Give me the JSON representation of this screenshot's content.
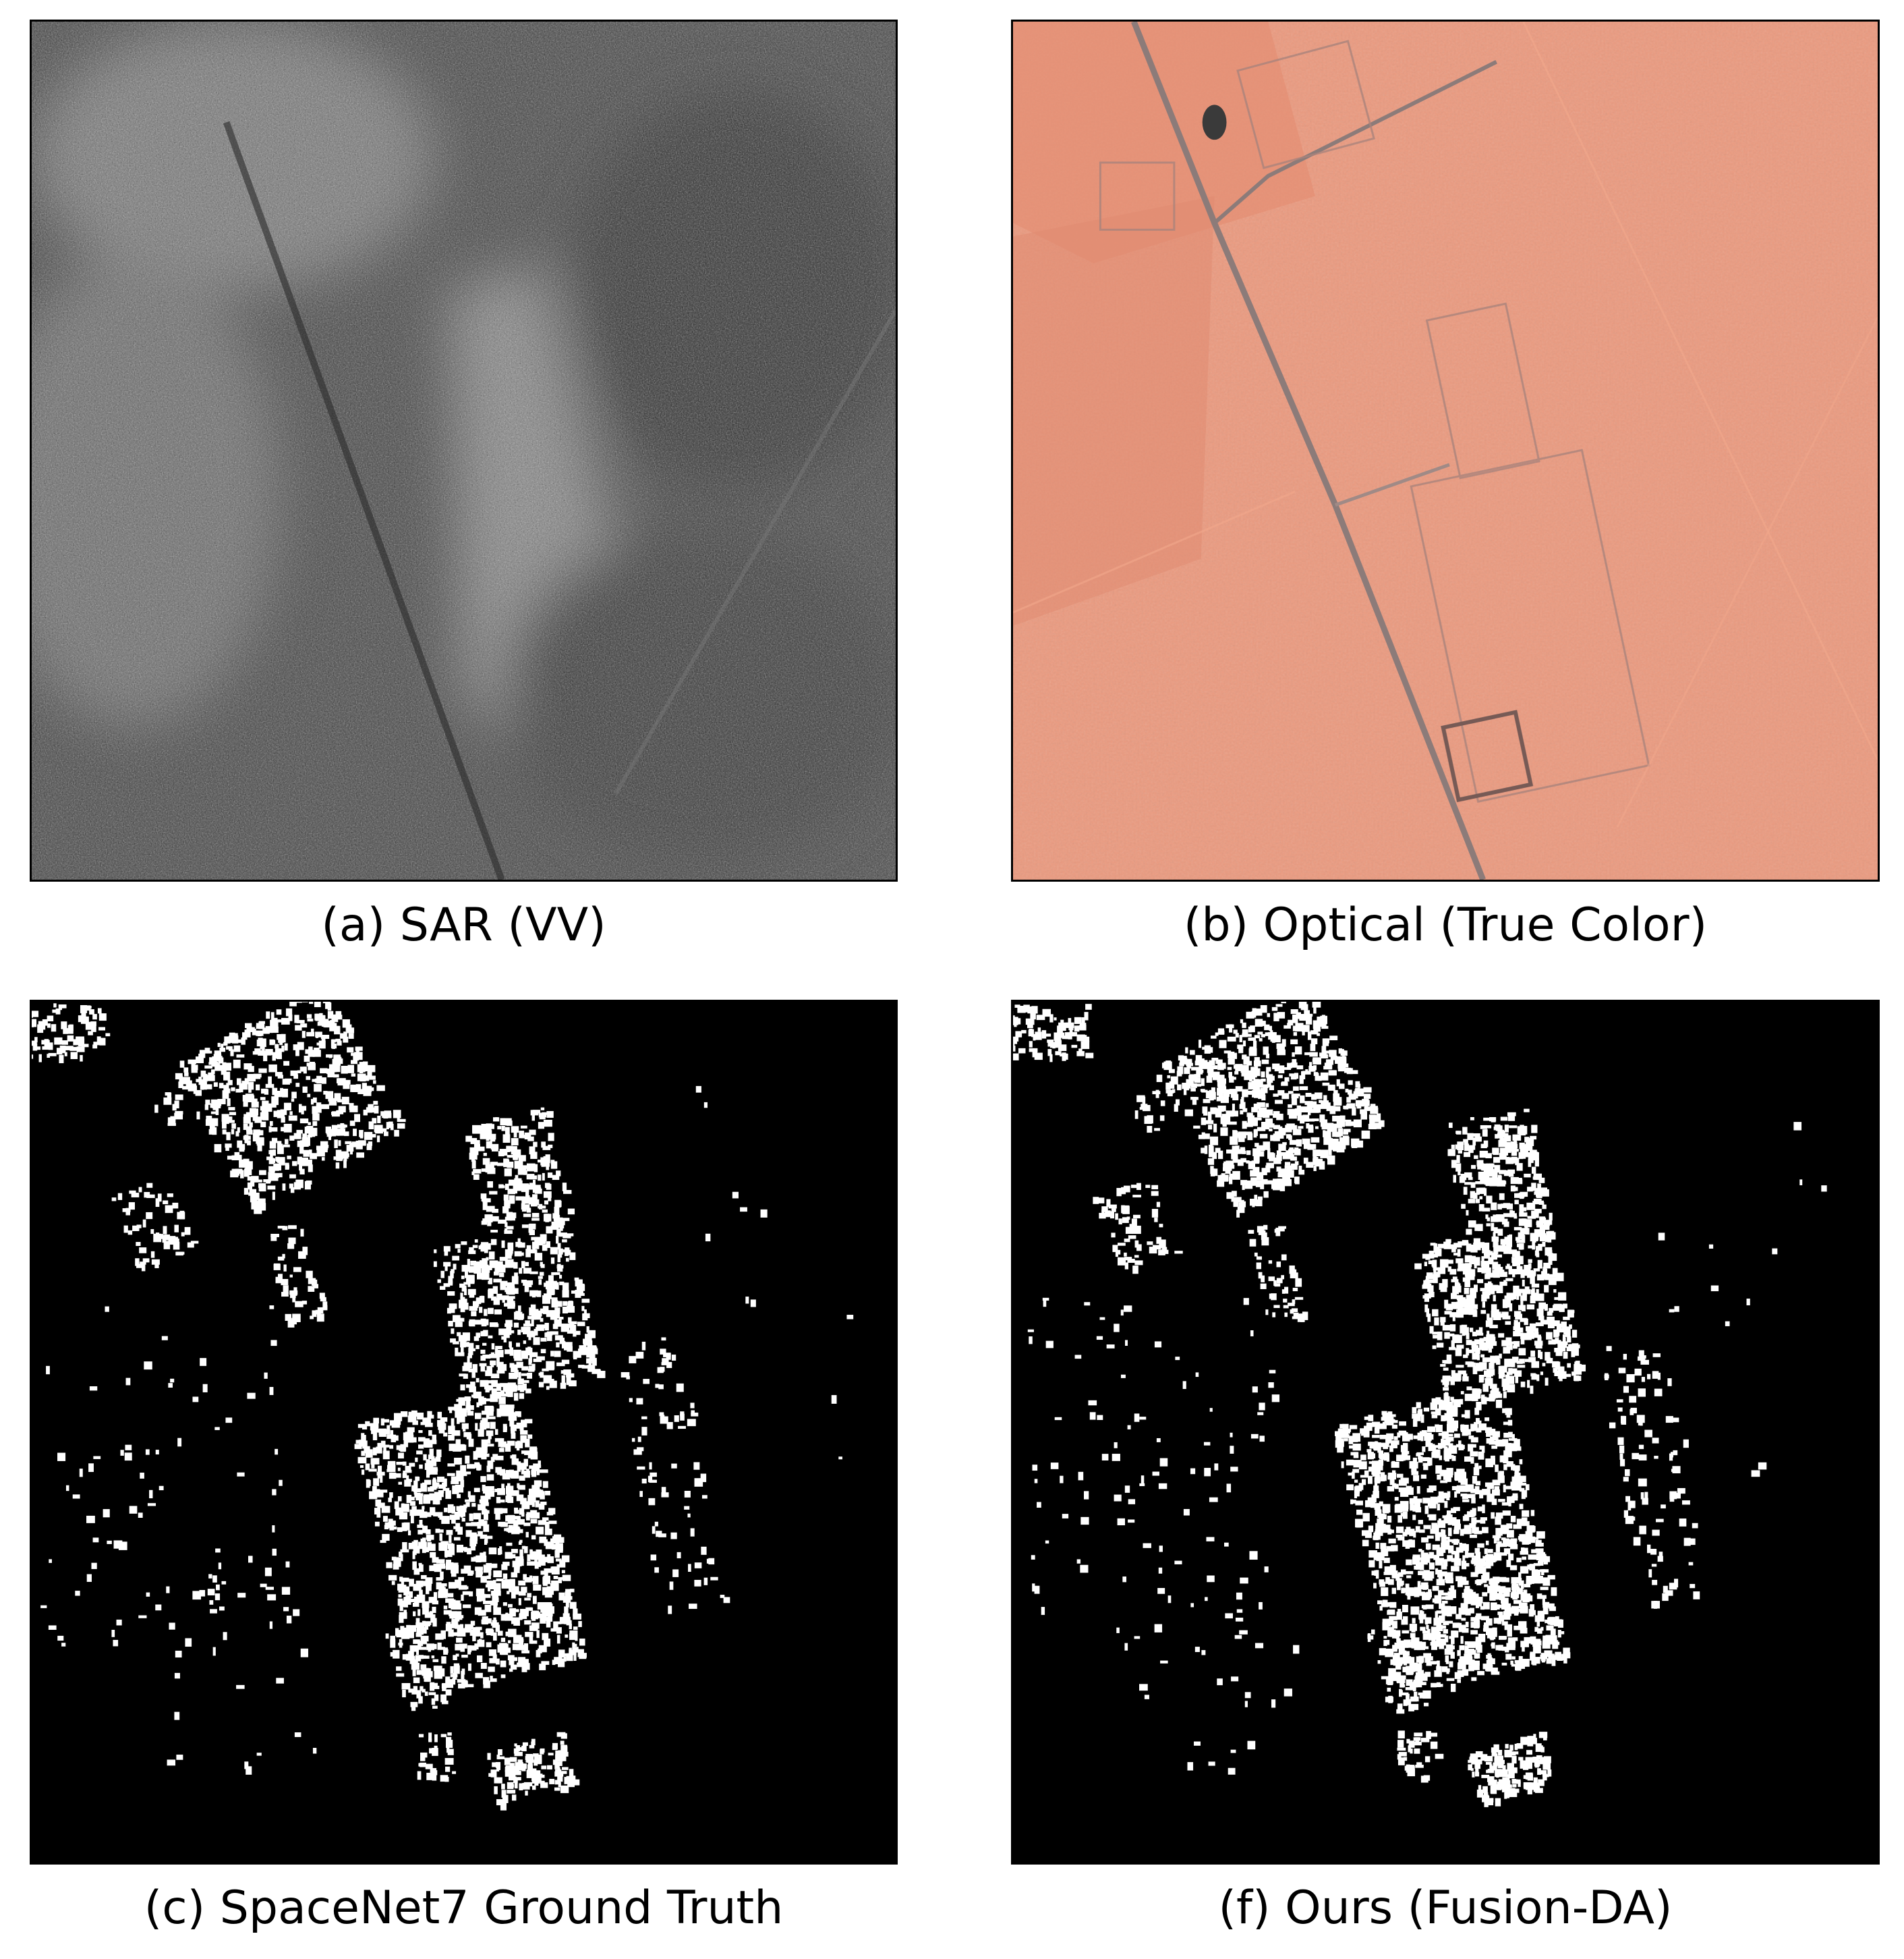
{
  "panels": {
    "sar": {
      "caption": "(a) SAR (VV)"
    },
    "optical": {
      "caption": "(b) Optical (True Color)"
    },
    "ground_truth": {
      "caption": "(c) SpaceNet7 Ground Truth"
    },
    "ours": {
      "caption": "(f) Ours (Fusion-DA)"
    }
  },
  "colors": {
    "sar_base": "#5a5a5a",
    "optical_base": "#e8967a",
    "road": "#8a7a78",
    "mask_background": "#000000",
    "mask_foreground": "#ffffff"
  }
}
